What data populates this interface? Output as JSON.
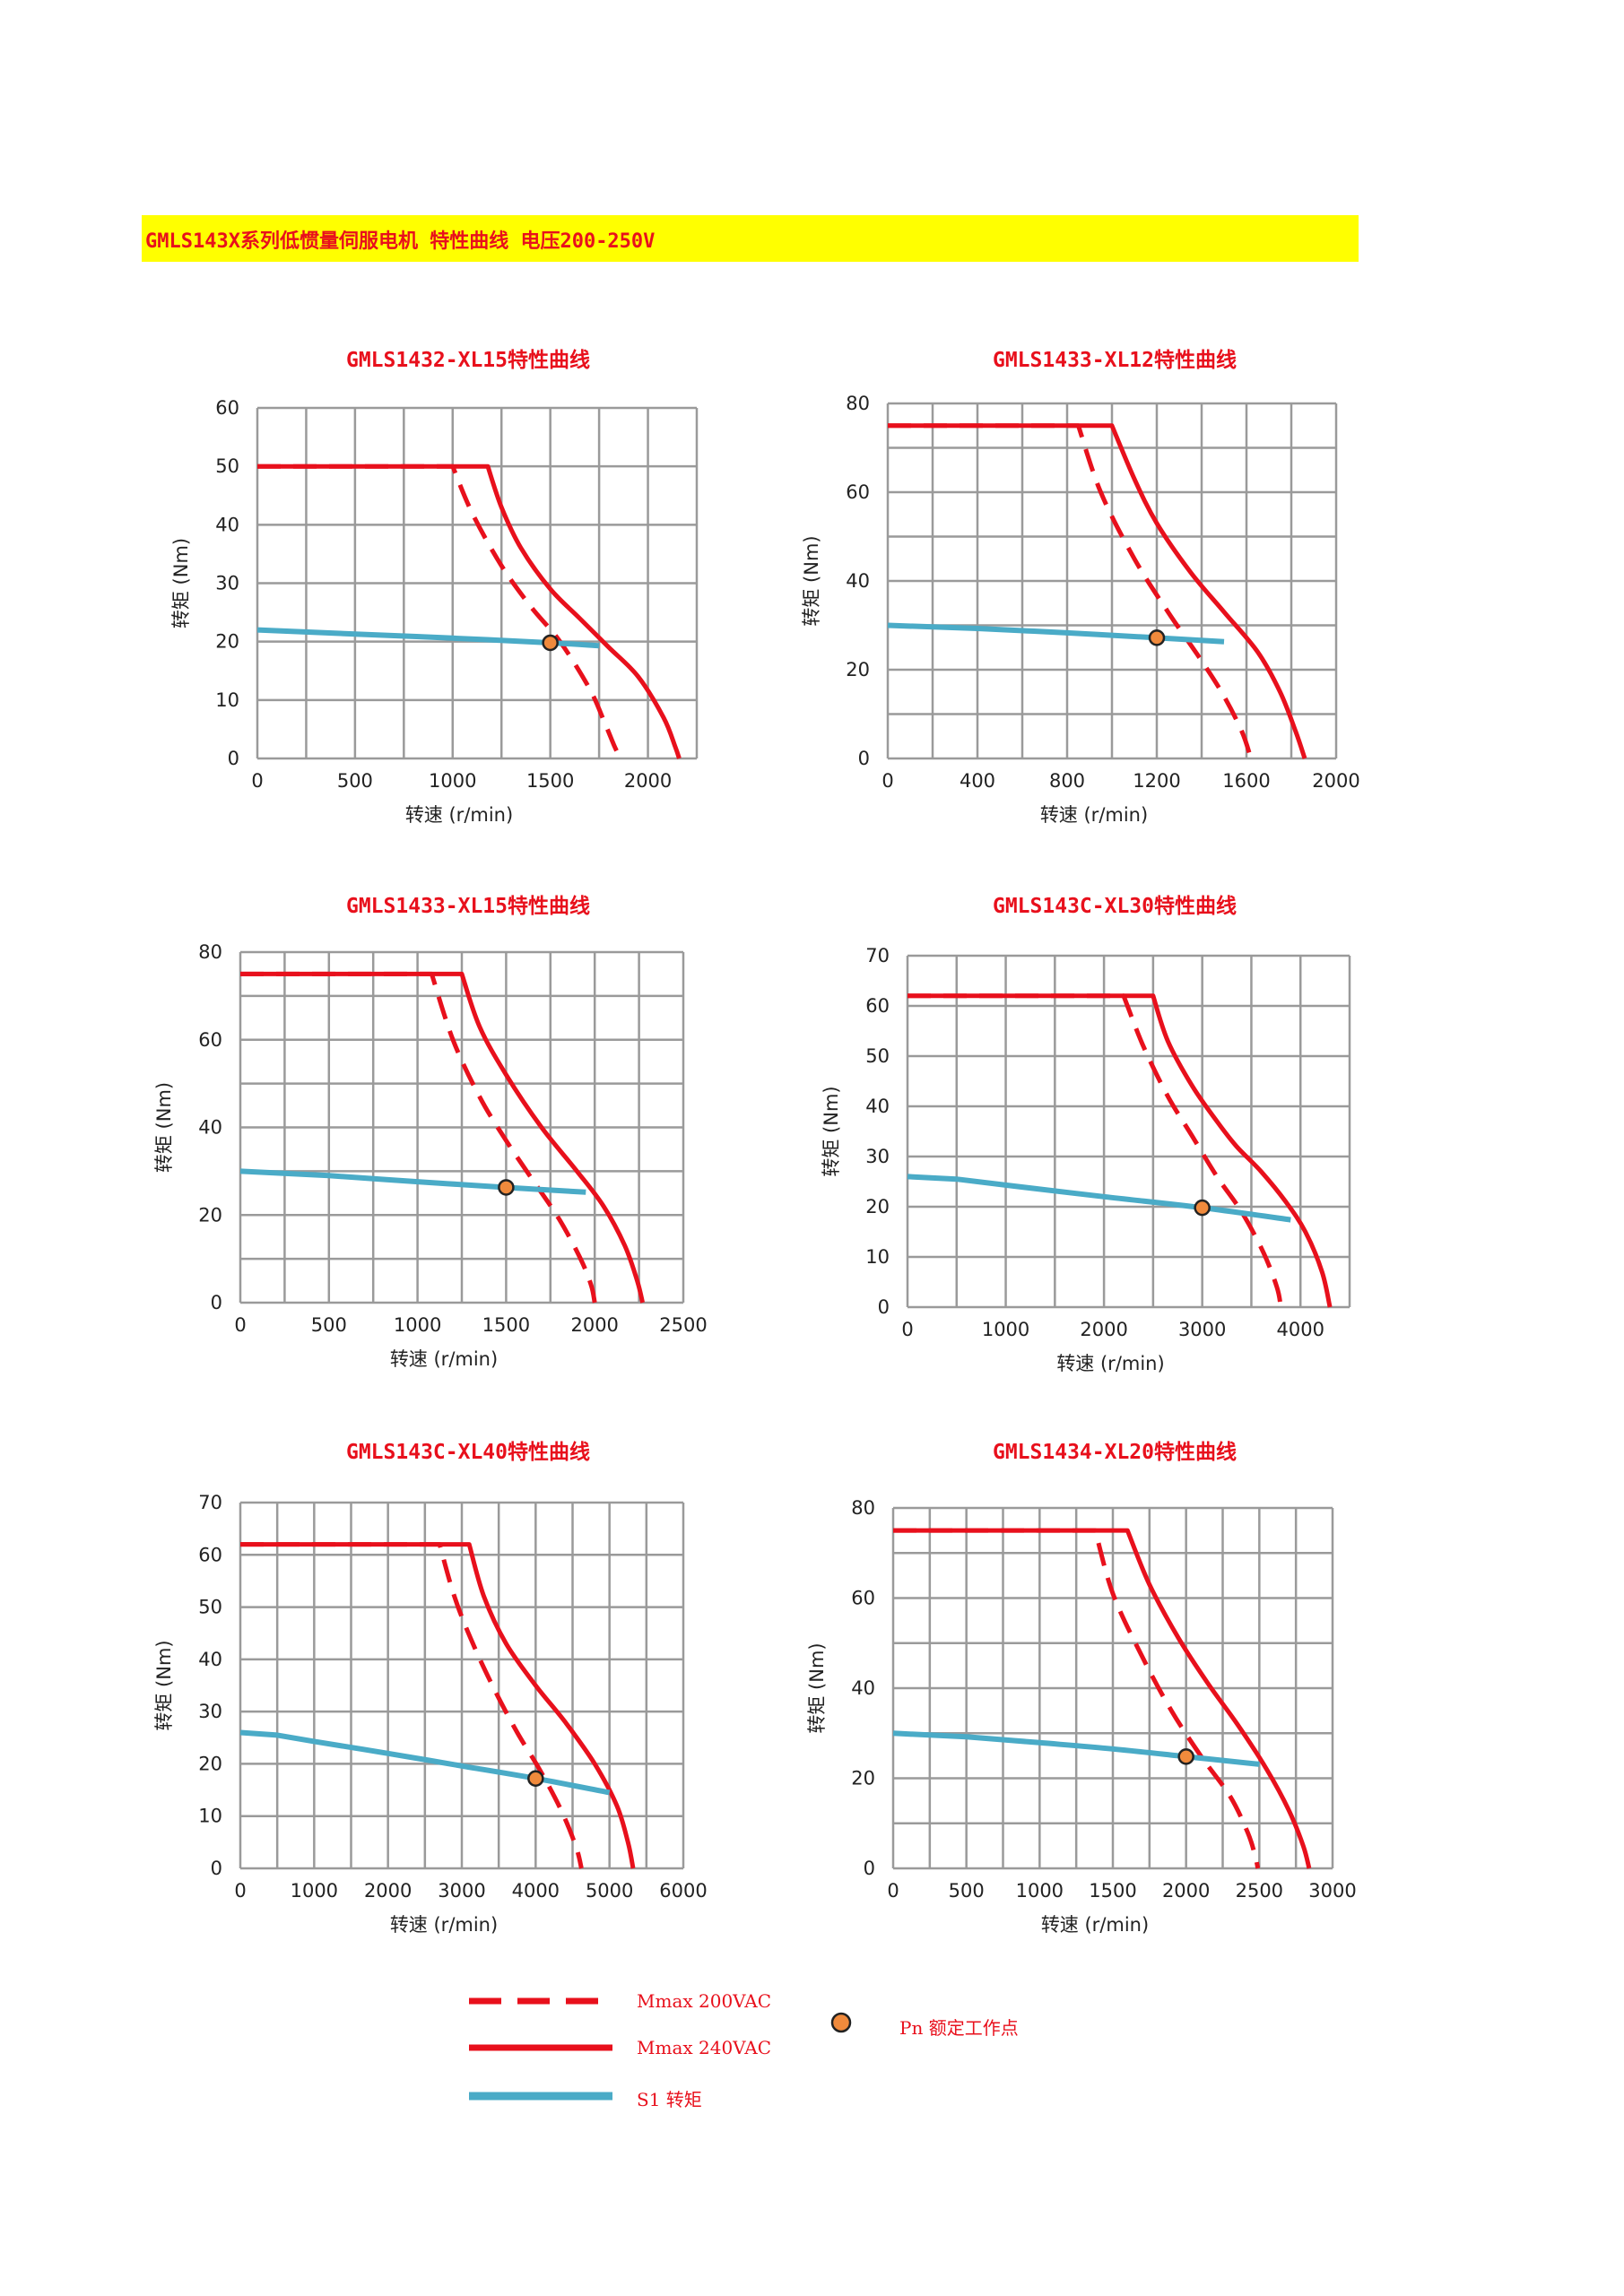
{
  "banner": {
    "text": "GMLS143X系列低惯量伺服电机 特性曲线 电压200-250V"
  },
  "colors": {
    "mmax200": "#e8101c",
    "mmax240": "#e8101c",
    "s1": "#4aabc7",
    "pn": "#f08a3c",
    "grid": "#9a9a9a"
  },
  "legend": {
    "mmax200": "Mmax 200VAC",
    "mmax240": "Mmax 240VAC",
    "s1": "S1 转矩",
    "pn": "Pn 额定工作点"
  },
  "chart_data": [
    {
      "type": "line",
      "title": "GMLS1432-XL15特性曲线",
      "xlabel": "转速 (r/min)",
      "ylabel": "转矩 (Nm)",
      "xlim": [
        0,
        2250
      ],
      "ylim": [
        0,
        60
      ],
      "xticks": [
        0,
        500,
        1000,
        1500,
        2000
      ],
      "yticks": [
        0,
        10,
        20,
        30,
        40,
        50,
        60
      ],
      "grid_x": [
        0,
        250,
        500,
        750,
        1000,
        1250,
        1500,
        1750,
        2000,
        2250
      ],
      "grid_y": [
        0,
        10,
        20,
        30,
        40,
        50,
        60
      ],
      "series": [
        {
          "key": "mmax200",
          "x": [
            0,
            1000,
            1100,
            1250,
            1400,
            1550,
            1700,
            1780,
            1830,
            1860
          ],
          "y": [
            50,
            50,
            42,
            33,
            26,
            20,
            12,
            6,
            2,
            0
          ]
        },
        {
          "key": "mmax240",
          "x": [
            0,
            1180,
            1250,
            1350,
            1500,
            1650,
            1800,
            1950,
            2080,
            2140,
            2160
          ],
          "y": [
            50,
            50,
            43,
            36,
            29,
            24,
            19,
            14,
            7,
            2,
            0
          ]
        },
        {
          "key": "s1",
          "x": [
            0,
            500,
            1000,
            1500,
            1750
          ],
          "y": [
            22,
            21.3,
            20.6,
            19.8,
            19.3
          ]
        }
      ],
      "pn": {
        "x": 1500,
        "y": 19.8
      }
    },
    {
      "type": "line",
      "title": "GMLS1433-XL12特性曲线",
      "xlabel": "转速 (r/min)",
      "ylabel": "转矩 (Nm)",
      "xlim": [
        0,
        2000
      ],
      "ylim": [
        0,
        80
      ],
      "xticks": [
        0,
        400,
        800,
        1200,
        1600,
        2000
      ],
      "yticks": [
        0,
        20,
        40,
        60,
        80
      ],
      "grid_x": [
        0,
        200,
        400,
        600,
        800,
        1000,
        1200,
        1400,
        1600,
        1800,
        2000
      ],
      "grid_y": [
        0,
        10,
        20,
        30,
        40,
        50,
        60,
        70,
        80
      ],
      "series": [
        {
          "key": "mmax200",
          "x": [
            0,
            850,
            950,
            1100,
            1250,
            1400,
            1500,
            1580,
            1620
          ],
          "y": [
            75,
            75,
            60,
            45,
            33,
            22,
            14,
            6,
            0
          ]
        },
        {
          "key": "mmax240",
          "x": [
            0,
            1000,
            1100,
            1200,
            1350,
            1500,
            1650,
            1750,
            1820,
            1860
          ],
          "y": [
            75,
            75,
            63,
            53,
            42,
            33,
            24,
            15,
            6,
            0
          ]
        },
        {
          "key": "s1",
          "x": [
            0,
            400,
            800,
            1200,
            1500
          ],
          "y": [
            30,
            29.3,
            28.3,
            27.2,
            26.3
          ]
        }
      ],
      "pn": {
        "x": 1200,
        "y": 27.2
      }
    },
    {
      "type": "line",
      "title": "GMLS1433-XL15特性曲线",
      "xlabel": "转速 (r/min)",
      "ylabel": "转矩 (Nm)",
      "xlim": [
        0,
        2500
      ],
      "ylim": [
        0,
        80
      ],
      "xticks": [
        0,
        500,
        1000,
        1500,
        2000,
        2500
      ],
      "yticks": [
        0,
        20,
        40,
        60,
        80
      ],
      "grid_x": [
        0,
        250,
        500,
        750,
        1000,
        1250,
        1500,
        1750,
        2000,
        2250,
        2500
      ],
      "grid_y": [
        0,
        10,
        20,
        30,
        40,
        50,
        60,
        70,
        80
      ],
      "series": [
        {
          "key": "mmax200",
          "x": [
            0,
            1080,
            1200,
            1350,
            1500,
            1650,
            1800,
            1920,
            1980,
            2000
          ],
          "y": [
            75,
            75,
            60,
            47,
            37,
            28,
            19,
            10,
            4,
            0
          ]
        },
        {
          "key": "mmax240",
          "x": [
            0,
            1250,
            1350,
            1500,
            1700,
            1900,
            2050,
            2170,
            2240,
            2270
          ],
          "y": [
            75,
            75,
            63,
            52,
            40,
            30,
            22,
            13,
            5,
            0
          ]
        },
        {
          "key": "s1",
          "x": [
            0,
            500,
            1000,
            1500,
            1950
          ],
          "y": [
            30,
            29,
            27.6,
            26.3,
            25.2
          ]
        }
      ],
      "pn": {
        "x": 1500,
        "y": 26.3
      }
    },
    {
      "type": "line",
      "title": "GMLS143C-XL30特性曲线",
      "xlabel": "转速 (r/min)",
      "ylabel": "转矩 (Nm)",
      "xlim": [
        0,
        4500
      ],
      "ylim": [
        0,
        70
      ],
      "xticks": [
        0,
        1000,
        2000,
        3000,
        4000
      ],
      "yticks": [
        0,
        10,
        20,
        30,
        40,
        50,
        60,
        70
      ],
      "grid_x": [
        0,
        500,
        1000,
        1500,
        2000,
        2500,
        3000,
        3500,
        4000,
        4500
      ],
      "grid_y": [
        0,
        10,
        20,
        30,
        40,
        50,
        60,
        70
      ],
      "series": [
        {
          "key": "mmax200",
          "x": [
            0,
            2200,
            2400,
            2650,
            2900,
            3150,
            3400,
            3620,
            3760,
            3800
          ],
          "y": [
            62,
            62,
            52,
            42,
            34,
            26,
            19,
            11,
            4,
            0
          ]
        },
        {
          "key": "mmax240",
          "x": [
            0,
            2500,
            2650,
            2900,
            3150,
            3350,
            3600,
            3850,
            4050,
            4220,
            4300
          ],
          "y": [
            62,
            62,
            53,
            44,
            37,
            32,
            27,
            21,
            15,
            7,
            0
          ]
        },
        {
          "key": "s1",
          "x": [
            0,
            500,
            1000,
            2000,
            3000,
            3900
          ],
          "y": [
            26,
            25.5,
            24.3,
            22,
            19.8,
            17.4
          ]
        }
      ],
      "pn": {
        "x": 3000,
        "y": 19.8
      }
    },
    {
      "type": "line",
      "title": "GMLS143C-XL40特性曲线",
      "xlabel": "转速 (r/min)",
      "ylabel": "转矩 (Nm)",
      "xlim": [
        0,
        6000
      ],
      "ylim": [
        0,
        70
      ],
      "xticks": [
        0,
        1000,
        2000,
        3000,
        4000,
        5000,
        6000
      ],
      "yticks": [
        0,
        10,
        20,
        30,
        40,
        50,
        60,
        70
      ],
      "grid_x": [
        0,
        500,
        1000,
        1500,
        2000,
        2500,
        3000,
        3500,
        4000,
        4500,
        5000,
        5500,
        6000
      ],
      "grid_y": [
        0,
        10,
        20,
        30,
        40,
        50,
        60,
        70
      ],
      "series": [
        {
          "key": "mmax200",
          "x": [
            0,
            2700,
            2900,
            3150,
            3450,
            3750,
            4050,
            4350,
            4550,
            4620
          ],
          "y": [
            62,
            62,
            52,
            43,
            34,
            26,
            19,
            11,
            4,
            0
          ]
        },
        {
          "key": "mmax240",
          "x": [
            0,
            3100,
            3300,
            3600,
            4000,
            4400,
            4800,
            5100,
            5250,
            5320
          ],
          "y": [
            62,
            62,
            52,
            43,
            35,
            28,
            20,
            12,
            5,
            0
          ]
        },
        {
          "key": "s1",
          "x": [
            0,
            500,
            1000,
            2000,
            3000,
            4000,
            5000
          ],
          "y": [
            26,
            25.5,
            24.3,
            22,
            19.6,
            17.2,
            14.5
          ]
        }
      ],
      "pn": {
        "x": 4000,
        "y": 17.2
      }
    },
    {
      "type": "line",
      "title": "GMLS1434-XL20特性曲线",
      "xlabel": "转速 (r/min)",
      "ylabel": "转矩 (Nm)",
      "xlim": [
        0,
        3000
      ],
      "ylim": [
        0,
        80
      ],
      "xticks": [
        0,
        500,
        1000,
        1500,
        2000,
        2500,
        3000
      ],
      "yticks": [
        0,
        20,
        40,
        60,
        80
      ],
      "grid_x": [
        0,
        250,
        500,
        750,
        1000,
        1250,
        1500,
        1750,
        2000,
        2250,
        2500,
        2750,
        3000
      ],
      "grid_y": [
        0,
        10,
        20,
        30,
        40,
        50,
        60,
        70,
        80
      ],
      "series": [
        {
          "key": "mmax200",
          "x": [
            0,
            1380,
            1500,
            1700,
            1900,
            2100,
            2300,
            2420,
            2470,
            2490
          ],
          "y": [
            75,
            75,
            61,
            47,
            35,
            25,
            16,
            8,
            3,
            0
          ]
        },
        {
          "key": "mmax240",
          "x": [
            0,
            1600,
            1750,
            1950,
            2150,
            2350,
            2550,
            2700,
            2800,
            2840
          ],
          "y": [
            75,
            75,
            63,
            51,
            41,
            32,
            22,
            13,
            5,
            0
          ]
        },
        {
          "key": "s1",
          "x": [
            0,
            500,
            1000,
            1500,
            2000,
            2500
          ],
          "y": [
            30,
            29.2,
            27.9,
            26.5,
            24.8,
            23.1
          ]
        }
      ],
      "pn": {
        "x": 2000,
        "y": 24.8
      }
    }
  ]
}
